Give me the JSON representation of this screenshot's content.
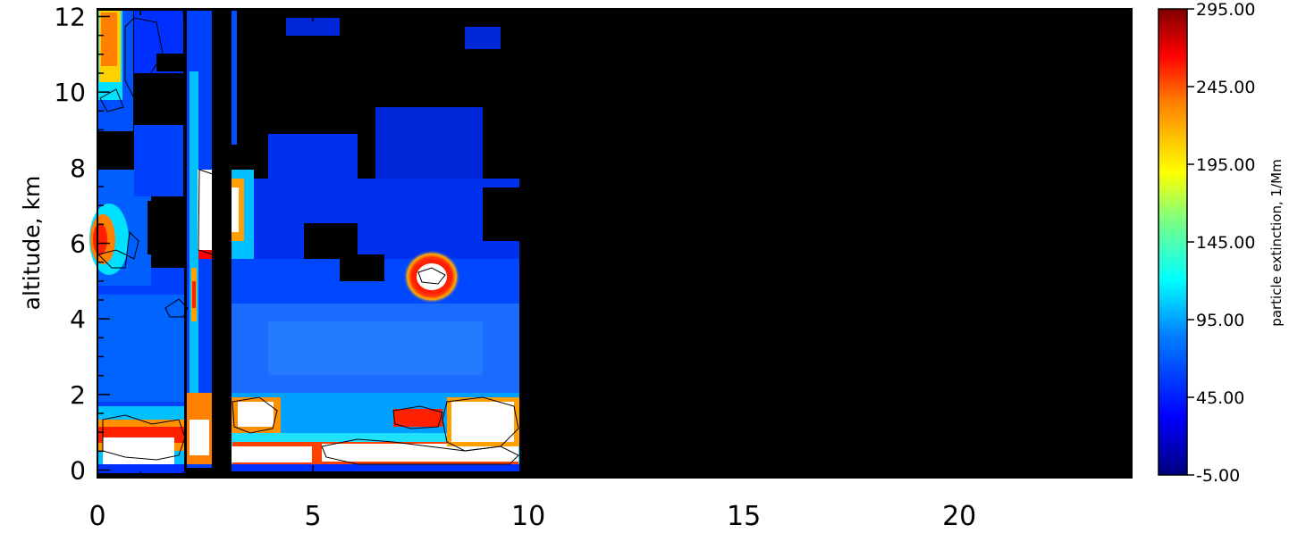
{
  "chart_data": {
    "type": "heatmap",
    "ylabel": "altitude, km",
    "x_ticks": [
      0,
      5,
      10,
      15,
      20
    ],
    "y_ticks": [
      0,
      2,
      4,
      6,
      8,
      10,
      12
    ],
    "x_tick_labels": [
      "0",
      "5",
      "10",
      "15",
      "20"
    ],
    "y_tick_labels": [
      "0",
      "2",
      "4",
      "6",
      "8",
      "10",
      "12"
    ],
    "xlim": [
      0,
      24
    ],
    "ylim": [
      -0.2,
      12.2
    ],
    "data_x_extent": [
      0,
      9.8
    ],
    "background_color": "#000000",
    "colorbar": {
      "label": "particle extinction, 1/Mm",
      "range": [
        -5,
        295
      ],
      "tick_values": [
        -5,
        45,
        95,
        145,
        195,
        245,
        295
      ],
      "tick_labels": [
        "-5.00",
        "45.00",
        "95.00",
        "145.00",
        "195.00",
        "245.00",
        "295.00"
      ],
      "colors": [
        "#000080",
        "#0000ff",
        "#0080ff",
        "#00ffff",
        "#80ff80",
        "#ffff00",
        "#ff8000",
        "#ff0000",
        "#800000"
      ]
    }
  }
}
